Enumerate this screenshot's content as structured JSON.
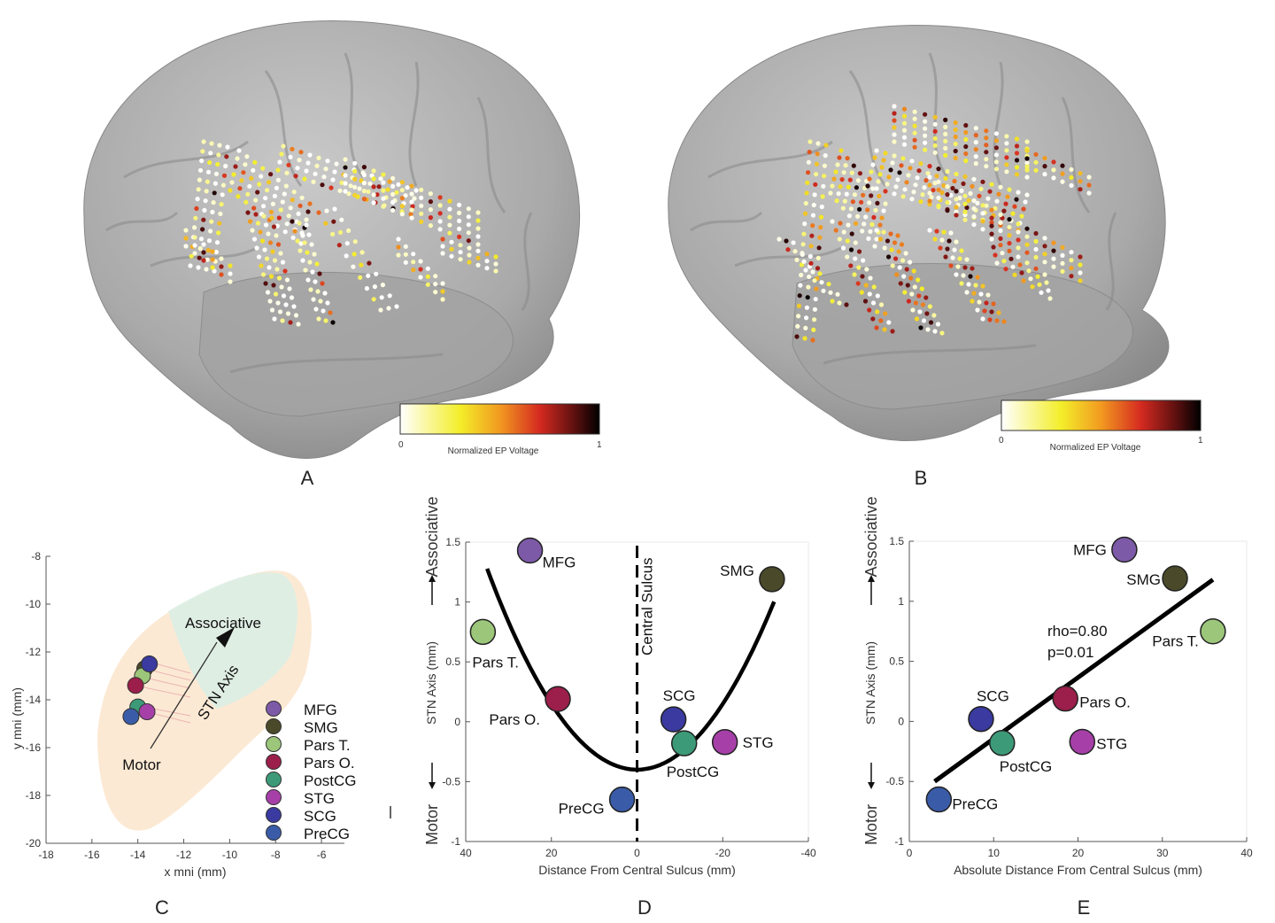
{
  "panels": {
    "A": "A",
    "B": "B",
    "C": "C",
    "D": "D",
    "E": "E"
  },
  "colors": {
    "MFG": "#7d5aa8",
    "SMG": "#4a4a2a",
    "Pars T.": "#9cc67a",
    "Pars O.": "#9b1f4a",
    "PostCG": "#3d9a78",
    "STG": "#a640a8",
    "SCG": "#3a3aa0",
    "PreCG": "#3a5ca8"
  },
  "colorbar": {
    "label": "Normalized EP Voltage",
    "min_label": "0",
    "max_label": "1"
  },
  "chart_data": [
    {
      "id": "C",
      "type": "scatter",
      "xlabel": "x mni (mm)",
      "ylabel": "y mni (mm)",
      "xlim": [
        -18,
        -5
      ],
      "ylim": [
        -20,
        -8
      ],
      "xticks": [
        "-18",
        "-16",
        "-14",
        "-12",
        "-10",
        "-8",
        "-6"
      ],
      "yticks": [
        "-20",
        "-18",
        "-16",
        "-14",
        "-12",
        "-10",
        "-8"
      ],
      "annotations": {
        "associative": "Associative",
        "motor": "Motor",
        "axis": "STN Axis"
      },
      "points": [
        {
          "name": "MFG",
          "x": -13.5,
          "y": -12.5
        },
        {
          "name": "SMG",
          "x": -13.7,
          "y": -12.7
        },
        {
          "name": "Pars T.",
          "x": -13.8,
          "y": -13.0
        },
        {
          "name": "Pars O.",
          "x": -14.1,
          "y": -13.4
        },
        {
          "name": "PostCG",
          "x": -14.0,
          "y": -14.3
        },
        {
          "name": "STG",
          "x": -13.6,
          "y": -14.5
        },
        {
          "name": "SCG",
          "x": -13.5,
          "y": -12.5
        },
        {
          "name": "PreCG",
          "x": -14.3,
          "y": -14.7
        }
      ],
      "legend": [
        "MFG",
        "SMG",
        "Pars T.",
        "Pars O.",
        "PostCG",
        "STG",
        "SCG",
        "PreCG"
      ]
    },
    {
      "id": "D",
      "type": "scatter",
      "xlabel": "Distance From Central Sulcus (mm)",
      "ylabel": "STN Axis (mm)",
      "ylabel_low": "Motor",
      "ylabel_high": "Associative",
      "xlim": [
        40,
        -40
      ],
      "ylim": [
        -1,
        1.5
      ],
      "xticks": [
        "40",
        "20",
        "0",
        "-20",
        "-40"
      ],
      "yticks": [
        "-1",
        "-0.5",
        "0",
        "0.5",
        "1",
        "1.5"
      ],
      "vline_label": "Central Sulcus",
      "fit": {
        "form": "quadratic",
        "vertex_x": 0,
        "vertex_y": -0.4,
        "a": 0.00137,
        "x_from": 35,
        "x_to": -32
      },
      "points": [
        {
          "name": "MFG",
          "x": 25,
          "y": 1.43
        },
        {
          "name": "Pars T.",
          "x": 36,
          "y": 0.75
        },
        {
          "name": "Pars O.",
          "x": 18.5,
          "y": 0.19
        },
        {
          "name": "PreCG",
          "x": 3.5,
          "y": -0.65
        },
        {
          "name": "SCG",
          "x": -8.5,
          "y": 0.02
        },
        {
          "name": "PostCG",
          "x": -11,
          "y": -0.18
        },
        {
          "name": "STG",
          "x": -20.5,
          "y": -0.17
        },
        {
          "name": "SMG",
          "x": -31.5,
          "y": 1.19
        }
      ]
    },
    {
      "id": "E",
      "type": "scatter",
      "xlabel": "Absolute Distance From Central Sulcus (mm)",
      "ylabel": "STN Axis (mm)",
      "ylabel_low": "Motor",
      "ylabel_high": "Associative",
      "xlim": [
        0,
        40
      ],
      "ylim": [
        -1,
        1.5
      ],
      "xticks": [
        "0",
        "10",
        "20",
        "30",
        "40"
      ],
      "yticks": [
        "-1",
        "-0.5",
        "0",
        "0.5",
        "1",
        "1.5"
      ],
      "stats": {
        "rho": "rho=0.80",
        "p": "p=0.01"
      },
      "fit": {
        "form": "linear",
        "x1": 3,
        "y1": -0.5,
        "x2": 36,
        "y2": 1.18
      },
      "points": [
        {
          "name": "MFG",
          "x": 25.5,
          "y": 1.43
        },
        {
          "name": "SMG",
          "x": 31.5,
          "y": 1.19
        },
        {
          "name": "Pars T.",
          "x": 36,
          "y": 0.75
        },
        {
          "name": "Pars O.",
          "x": 18.5,
          "y": 0.19
        },
        {
          "name": "SCG",
          "x": 8.5,
          "y": 0.02
        },
        {
          "name": "PostCG",
          "x": 11,
          "y": -0.18
        },
        {
          "name": "STG",
          "x": 20.5,
          "y": -0.17
        },
        {
          "name": "PreCG",
          "x": 3.5,
          "y": -0.65
        }
      ]
    }
  ]
}
